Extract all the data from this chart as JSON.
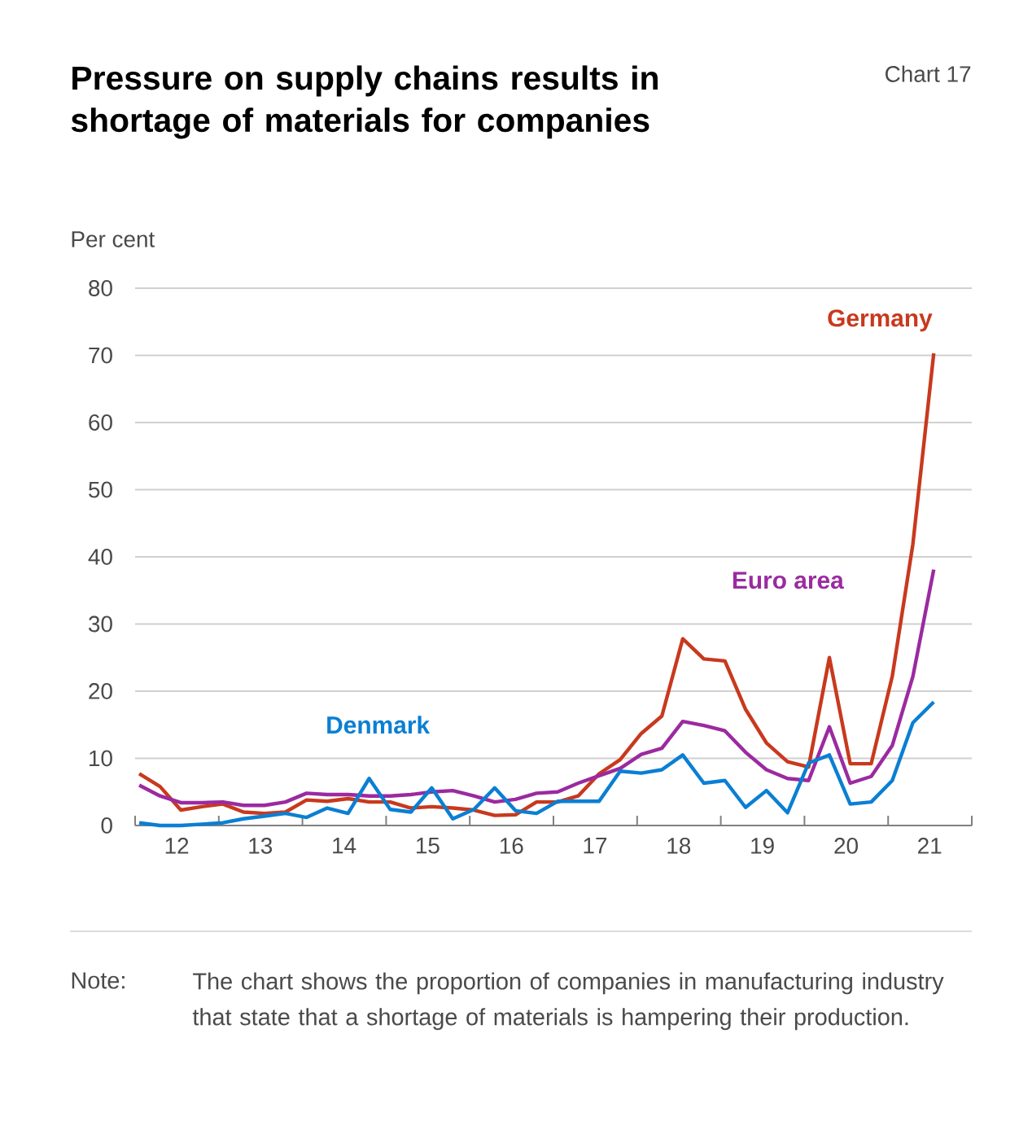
{
  "chart_data": {
    "type": "line",
    "title": "Pressure on supply chains results in shortage of materials for companies",
    "ylabel": "Per cent",
    "annotations": [
      "Chart 17",
      "Note:",
      "The chart shows the proportion of companies in manufacturing industry that state that a shortage of materials is hampering their production."
    ],
    "x": [
      "2012-01-19",
      "2012-04-19",
      "2012-07-19",
      "2012-10-19",
      "2013-01-19",
      "2013-04-19",
      "2013-07-19",
      "2013-10-19",
      "2014-01-19",
      "2014-04-19",
      "2014-07-19",
      "2014-10-19",
      "2015-01-19",
      "2015-04-19",
      "2015-07-19",
      "2015-10-19",
      "2016-01-19",
      "2016-04-19",
      "2016-07-19",
      "2016-10-19",
      "2017-01-19",
      "2017-04-19",
      "2017-07-19",
      "2017-10-19",
      "2018-01-19",
      "2018-04-19",
      "2018-07-19",
      "2018-10-19",
      "2019-01-19",
      "2019-04-19",
      "2019-07-19",
      "2019-10-19",
      "2020-01-19",
      "2020-04-19",
      "2020-07-19",
      "2020-10-19",
      "2021-01-19",
      "2021-04-19",
      "2021-07-19"
    ],
    "series": [
      {
        "name": "Germany",
        "color": "#c8391e",
        "values": [
          7.7,
          5.8,
          2.3,
          2.8,
          3.2,
          2.0,
          1.8,
          2.0,
          3.8,
          3.6,
          4.0,
          3.5,
          3.5,
          2.6,
          2.8,
          2.6,
          2.3,
          1.5,
          1.6,
          3.5,
          3.5,
          4.4,
          7.7,
          9.8,
          13.7,
          16.3,
          27.8,
          24.8,
          24.5,
          17.3,
          12.3,
          9.5,
          8.7,
          25.0,
          9.2,
          9.2,
          22.2,
          41.9,
          70.3
        ]
      },
      {
        "name": "Euro area",
        "color": "#9b2aa0",
        "values": [
          6.0,
          4.4,
          3.4,
          3.4,
          3.5,
          3.0,
          3.0,
          3.5,
          4.8,
          4.6,
          4.6,
          4.4,
          4.4,
          4.6,
          5.0,
          5.2,
          4.4,
          3.5,
          3.9,
          4.8,
          5.0,
          6.3,
          7.4,
          8.5,
          10.6,
          11.5,
          15.5,
          14.9,
          14.1,
          10.9,
          8.3,
          7.0,
          6.7,
          14.7,
          6.3,
          7.3,
          11.9,
          22.2,
          38.1
        ]
      },
      {
        "name": "Denmark",
        "color": "#0a7fd3",
        "values": [
          0.4,
          0.0,
          0.0,
          0.2,
          0.4,
          1.0,
          1.4,
          1.8,
          1.2,
          2.6,
          1.8,
          7.0,
          2.4,
          2.0,
          5.6,
          1.0,
          2.4,
          5.6,
          2.2,
          1.8,
          3.6,
          3.6,
          3.6,
          8.1,
          7.8,
          8.3,
          10.5,
          6.3,
          6.7,
          2.7,
          5.2,
          1.9,
          9.3,
          10.5,
          3.2,
          3.5,
          6.7,
          15.3,
          18.4
        ]
      }
    ],
    "xlim": [
      "2012-01-01",
      "2022-01-01"
    ],
    "xticks": [
      {
        "value": "2012-01-01",
        "label": null
      },
      {
        "value": "2012-07-01",
        "label": "12"
      },
      {
        "value": "2013-01-01",
        "label": null
      },
      {
        "value": "2013-07-01",
        "label": "13"
      },
      {
        "value": "2014-01-01",
        "label": null
      },
      {
        "value": "2014-07-01",
        "label": "14"
      },
      {
        "value": "2015-01-01",
        "label": null
      },
      {
        "value": "2015-07-01",
        "label": "15"
      },
      {
        "value": "2016-01-01",
        "label": null
      },
      {
        "value": "2016-07-01",
        "label": "16"
      },
      {
        "value": "2017-01-01",
        "label": null
      },
      {
        "value": "2017-07-01",
        "label": "17"
      },
      {
        "value": "2018-01-01",
        "label": null
      },
      {
        "value": "2018-07-01",
        "label": "18"
      },
      {
        "value": "2019-01-01",
        "label": null
      },
      {
        "value": "2019-07-01",
        "label": "19"
      },
      {
        "value": "2020-01-01",
        "label": null
      },
      {
        "value": "2020-07-01",
        "label": "20"
      },
      {
        "value": "2021-01-01",
        "label": null
      },
      {
        "value": "2021-07-01",
        "label": "21"
      },
      {
        "value": "2022-01-01",
        "label": null
      }
    ],
    "ylim": [
      0,
      80
    ],
    "yticks": [
      0,
      10,
      20,
      30,
      40,
      50,
      60,
      70,
      80
    ],
    "grid": "y",
    "legend": false,
    "marker": "none",
    "line_style": "solid"
  }
}
